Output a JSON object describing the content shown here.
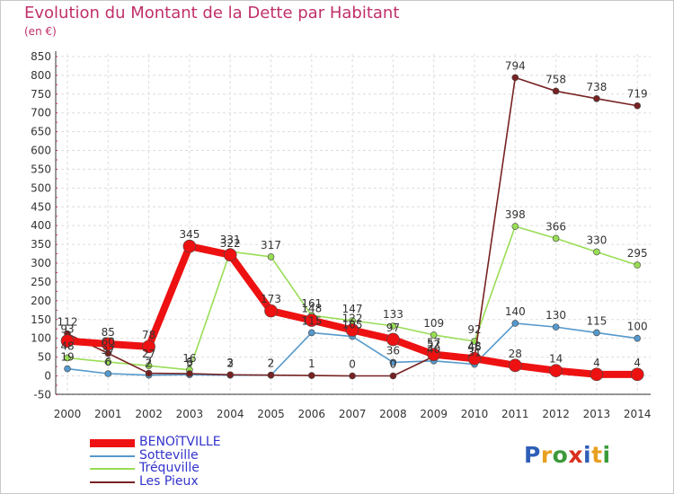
{
  "title": "Evolution du Montant de la Dette par Habitant",
  "subtitle": "(en €)",
  "logo": {
    "text": "Proxiti",
    "colors": [
      "#2e5fb8",
      "#e8a020",
      "#3a9a3a",
      "#d83020",
      "#2e5fb8",
      "#e8a020",
      "#3a9a3a"
    ]
  },
  "chart_data": {
    "type": "line",
    "title": "Evolution du Montant de la Dette par Habitant",
    "ylabel": "(en €)",
    "xlabel": "",
    "ylim": [
      -50,
      850
    ],
    "yticks": [
      -50,
      0,
      50,
      100,
      150,
      200,
      250,
      300,
      350,
      400,
      450,
      500,
      550,
      600,
      650,
      700,
      750,
      800,
      850
    ],
    "grid": true,
    "legend_position": "bottom-left",
    "categories": [
      "2000",
      "2001",
      "2002",
      "2003",
      "2004",
      "2005",
      "2006",
      "2007",
      "2008",
      "2009",
      "2010",
      "2011",
      "2012",
      "2013",
      "2014"
    ],
    "series": [
      {
        "name": "Tréquville",
        "color": "#99dd55",
        "values": [
          48,
          37,
          27,
          16,
          331,
          317,
          161,
          147,
          133,
          109,
          92,
          398,
          366,
          330,
          295
        ]
      },
      {
        "name": "Sotteville",
        "color": "#5599cc",
        "values": [
          19,
          6,
          2,
          3,
          2,
          2,
          115,
          105,
          36,
          40,
          31,
          140,
          130,
          115,
          100
        ]
      },
      {
        "name": "Les Pieux",
        "color": "#772222",
        "values": [
          112,
          60,
          7,
          6,
          3,
          2,
          1,
          0,
          0,
          52,
          48,
          794,
          758,
          738,
          719
        ]
      },
      {
        "name": "BENOîTVILLE",
        "color": "#ee1111",
        "values": [
          93,
          85,
          78,
          345,
          322,
          173,
          148,
          122,
          97,
          57,
          46,
          28,
          14,
          4,
          4
        ]
      }
    ]
  }
}
